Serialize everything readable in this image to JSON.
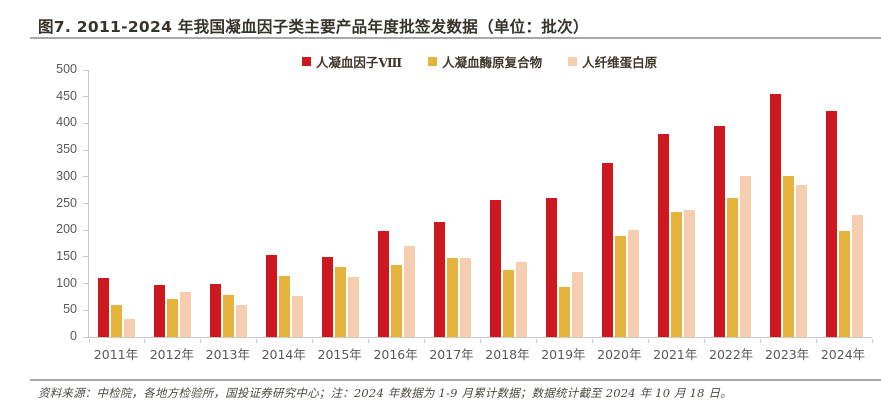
{
  "title": "图7. 2011-2024 年我国凝血因子类主要产品年度批签发数据（单位：批次）",
  "footer": "资料来源：中检院，各地方检验所，国投证券研究中心；注：2024 年数据为 1-9 月累计数据；数据统计截至 2024 年 10 月 18 日。",
  "colors": {
    "series_red": "#ce181f",
    "series_gold": "#e6b43c",
    "series_peach": "#f7cdb0",
    "axis": "#c9c9c9",
    "tick_text": "#595959",
    "title_text": "#38322a"
  },
  "chart_data": {
    "type": "bar",
    "title": "2011-2024 年我国凝血因子类主要产品年度批签发数据",
    "unit": "批次",
    "categories": [
      "2011年",
      "2012年",
      "2013年",
      "2014年",
      "2015年",
      "2016年",
      "2017年",
      "2018年",
      "2019年",
      "2020年",
      "2021年",
      "2022年",
      "2023年",
      "2024年"
    ],
    "series": [
      {
        "name": "人凝血因子Ⅷ",
        "key": "factor-viii",
        "color": "#ce181f",
        "values": [
          110,
          97,
          100,
          153,
          150,
          198,
          215,
          257,
          260,
          325,
          380,
          395,
          455,
          424
        ]
      },
      {
        "name": "人凝血酶原复合物",
        "key": "prothrombin-complex",
        "color": "#e6b43c",
        "values": [
          60,
          72,
          79,
          115,
          132,
          135,
          148,
          126,
          93,
          190,
          234,
          260,
          301,
          199
        ]
      },
      {
        "name": "人纤维蛋白原",
        "key": "fibrinogen",
        "color": "#f7cdb0",
        "values": [
          33,
          84,
          60,
          76,
          113,
          170,
          148,
          140,
          122,
          200,
          237,
          302,
          285,
          228
        ]
      }
    ],
    "ylim": [
      0,
      500
    ],
    "yticks": [
      0,
      50,
      100,
      150,
      200,
      250,
      300,
      350,
      400,
      450,
      500
    ],
    "grid": false,
    "legend_position": "top-center",
    "xlabel": "",
    "ylabel": ""
  }
}
